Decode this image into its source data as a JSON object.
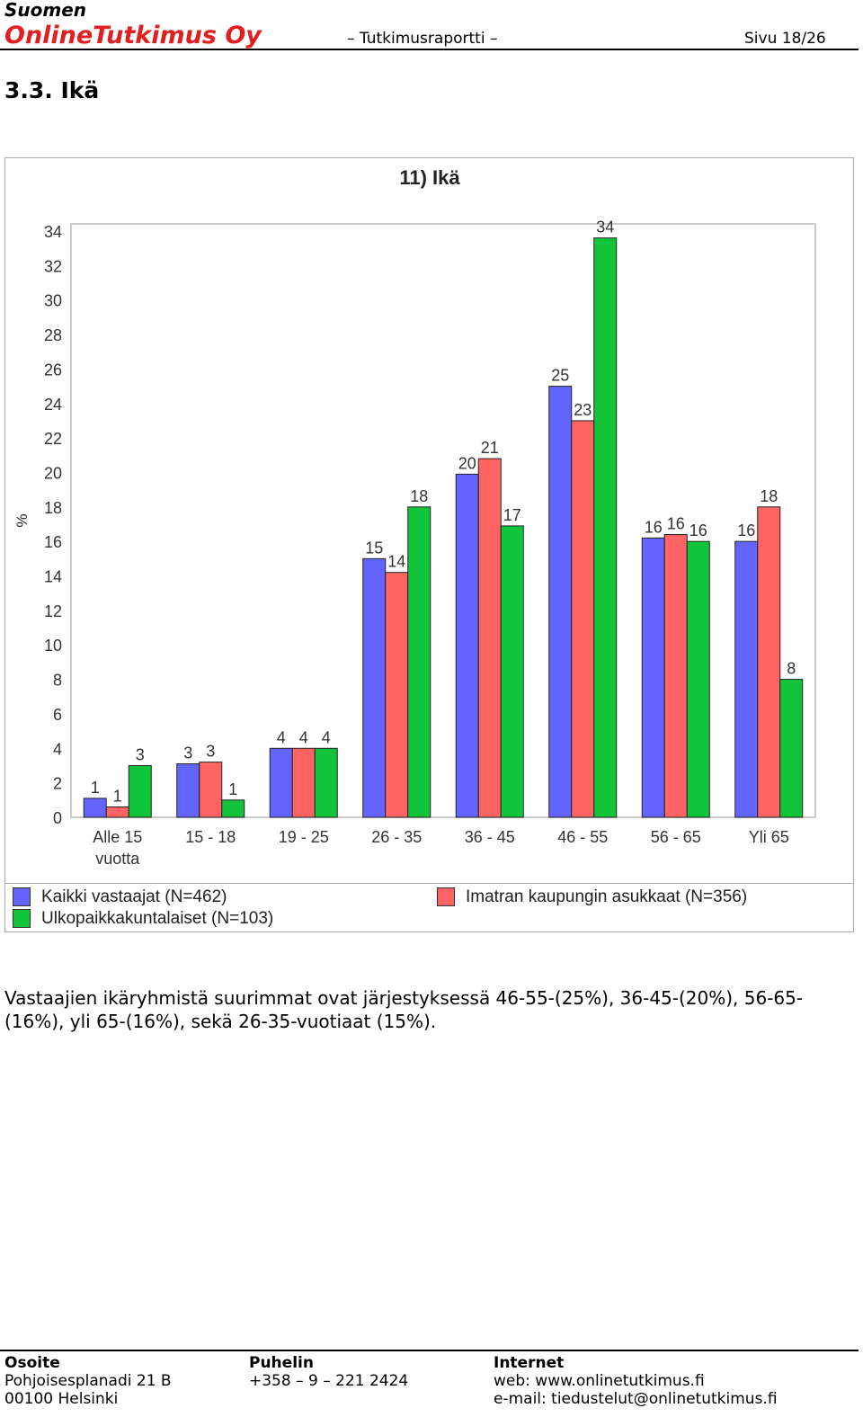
{
  "header": {
    "company_line1": "Suomen",
    "company_line2": "OnlineTutkimus Oy",
    "report_label": "– Tutkimusraportti –",
    "page_label": "Sivu 18/26"
  },
  "section": {
    "title": "3.3. Ikä"
  },
  "chart_data": {
    "type": "bar",
    "title": "11) Ikä",
    "ylabel": "%",
    "xlabel": "",
    "ylim": [
      0,
      34
    ],
    "yticks": [
      0,
      2,
      4,
      6,
      8,
      10,
      12,
      14,
      16,
      18,
      20,
      22,
      24,
      26,
      28,
      30,
      32,
      34
    ],
    "categories": [
      [
        "Alle 15",
        "vuotta"
      ],
      [
        "15 - 18"
      ],
      [
        "19 - 25"
      ],
      [
        "26 - 35"
      ],
      [
        "36 - 45"
      ],
      [
        "46 - 55"
      ],
      [
        "56 - 65"
      ],
      [
        "Yli 65"
      ]
    ],
    "series": [
      {
        "name": "Kaikki vastaajat (N=462)",
        "color": "#6464ff",
        "values": [
          1,
          3,
          4,
          15,
          20,
          25,
          16,
          16
        ]
      },
      {
        "name": "Imatran kaupungin asukkaat (N=356)",
        "color": "#ff6464",
        "values": [
          1,
          3,
          4,
          14,
          21,
          23,
          16,
          18
        ]
      },
      {
        "name": "Ulkopaikkakuntalaiset (N=103)",
        "color": "#11c43a",
        "values": [
          3,
          1,
          4,
          18,
          17,
          34,
          16,
          8
        ]
      }
    ],
    "bar_heights": [
      [
        1.1,
        3.1,
        4.0,
        15.0,
        19.9,
        25.0,
        16.2,
        16.0
      ],
      [
        0.6,
        3.2,
        4.0,
        14.2,
        20.8,
        23.0,
        16.4,
        18.0
      ],
      [
        3.0,
        1.0,
        4.0,
        18.0,
        16.9,
        33.6,
        16.0,
        8.0
      ]
    ],
    "grid": false,
    "legend_position": "bottom"
  },
  "body": {
    "paragraph": "Vastaajien ikäryhmistä suurimmat ovat järjestyksessä 46-55-(25%), 36-45-(20%), 56-65-(16%), yli 65-(16%), sekä 26-35-vuotiaat (15%)."
  },
  "footer": {
    "address_head": "Osoite",
    "address_line1": "Pohjoisesplanadi 21 B",
    "address_line2": "00100 Helsinki",
    "phone_head": "Puhelin",
    "phone_line1": "+358 – 9 – 221 2424",
    "internet_head": "Internet",
    "internet_line1": "web: www.onlinetutkimus.fi",
    "internet_line2": "e-mail: tiedustelut@onlinetutkimus.fi"
  }
}
